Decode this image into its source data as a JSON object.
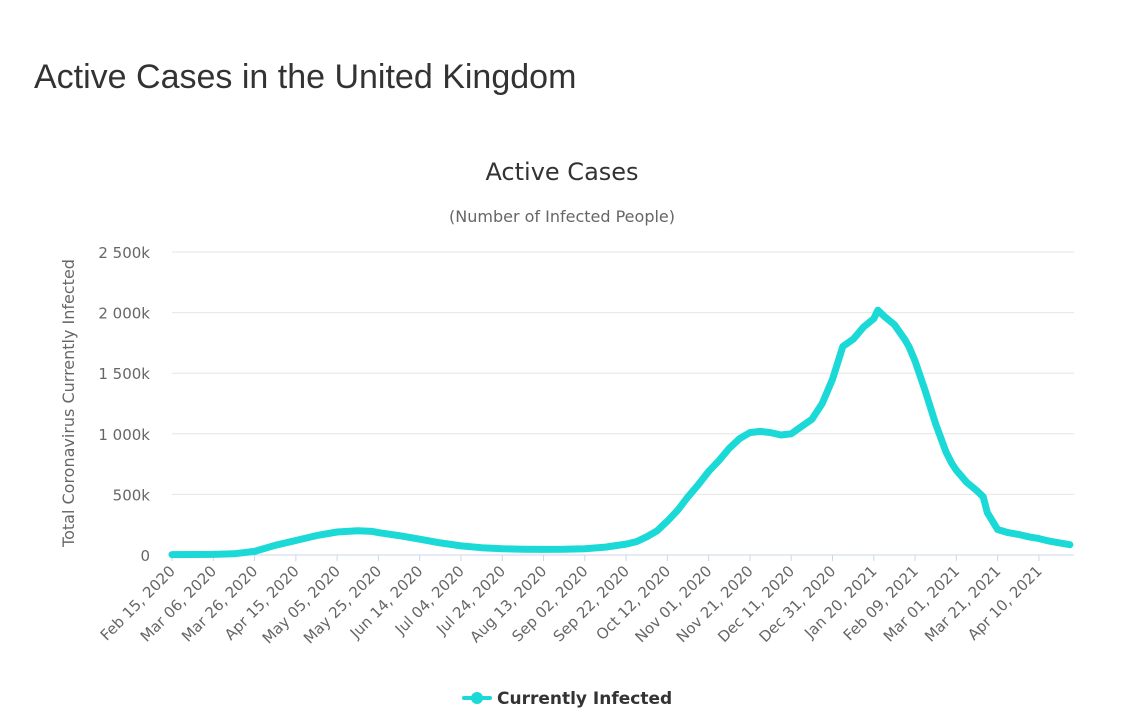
{
  "page": {
    "title": "Active Cases in the United Kingdom"
  },
  "chart_data": {
    "type": "line",
    "title": "Active Cases",
    "subtitle": "(Number of Infected People)",
    "xlabel": "",
    "ylabel": "Total Coronavirus Currently Infected",
    "ylim": [
      0,
      2500000
    ],
    "yticks": [
      0,
      500000,
      1000000,
      1500000,
      2000000,
      2500000
    ],
    "ytick_labels": [
      "0",
      "500k",
      "1 000k",
      "1 500k",
      "2 000k",
      "2 500k"
    ],
    "x_start": "Feb 15, 2020",
    "x_end": "Apr 27, 2021",
    "xtick_labels": [
      "Feb 15, 2020",
      "Mar 06, 2020",
      "Mar 26, 2020",
      "Apr 15, 2020",
      "May 05, 2020",
      "May 25, 2020",
      "Jun 14, 2020",
      "Jul 04, 2020",
      "Jul 24, 2020",
      "Aug 13, 2020",
      "Sep 02, 2020",
      "Sep 22, 2020",
      "Oct 12, 2020",
      "Nov 01, 2020",
      "Nov 21, 2020",
      "Dec 11, 2020",
      "Dec 31, 2020",
      "Jan 20, 2021",
      "Feb 09, 2021",
      "Mar 01, 2021",
      "Mar 21, 2021",
      "Apr 10, 2021"
    ],
    "legend": "bottom-center",
    "grid": true,
    "series": [
      {
        "name": "Currently Infected",
        "color": "#1ad9d6",
        "x_days": [
          0,
          20,
          30,
          40,
          50,
          60,
          70,
          80,
          90,
          97,
          100,
          110,
          120,
          130,
          140,
          150,
          160,
          170,
          180,
          190,
          200,
          210,
          220,
          225,
          230,
          235,
          240,
          245,
          250,
          255,
          260,
          265,
          270,
          275,
          280,
          285,
          290,
          295,
          300,
          305,
          310,
          315,
          320,
          325,
          330,
          335,
          340,
          342,
          345,
          350,
          355,
          357,
          360,
          365,
          370,
          375,
          378,
          380,
          385,
          390,
          393,
          395,
          400,
          405,
          410,
          415,
          420,
          425,
          430,
          435
        ],
        "values": [
          3000,
          5000,
          10000,
          30000,
          80000,
          120000,
          160000,
          190000,
          200000,
          195000,
          185000,
          160000,
          130000,
          100000,
          75000,
          60000,
          52000,
          48000,
          46000,
          47000,
          52000,
          65000,
          90000,
          110000,
          150000,
          200000,
          280000,
          370000,
          480000,
          580000,
          690000,
          780000,
          880000,
          960000,
          1010000,
          1020000,
          1010000,
          990000,
          1000000,
          1060000,
          1120000,
          1250000,
          1450000,
          1720000,
          1780000,
          1880000,
          1950000,
          2020000,
          1970000,
          1900000,
          1780000,
          1720000,
          1600000,
          1350000,
          1080000,
          850000,
          750000,
          700000,
          600000,
          530000,
          480000,
          350000,
          210000,
          185000,
          170000,
          150000,
          135000,
          115000,
          100000,
          85000
        ]
      }
    ]
  }
}
